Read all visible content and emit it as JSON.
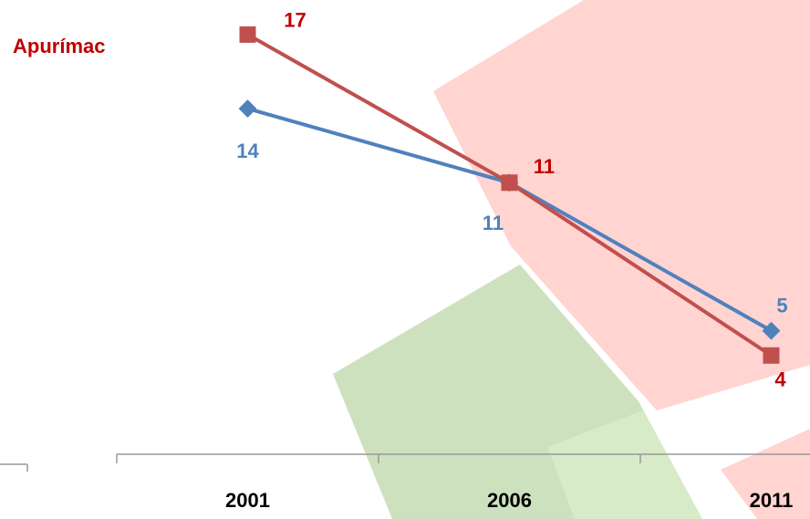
{
  "chart_data": {
    "type": "line",
    "title": "Apurímac",
    "categories": [
      "2001",
      "2006",
      "2011"
    ],
    "series": [
      {
        "color": "#4f81bd",
        "label_color": "#4f81bd",
        "values": [
          14,
          11,
          5
        ]
      },
      {
        "color": "#c0504d",
        "label_color": "#c00000",
        "values": [
          17,
          11,
          4
        ]
      }
    ],
    "ylim": [
      0,
      18.4
    ]
  }
}
